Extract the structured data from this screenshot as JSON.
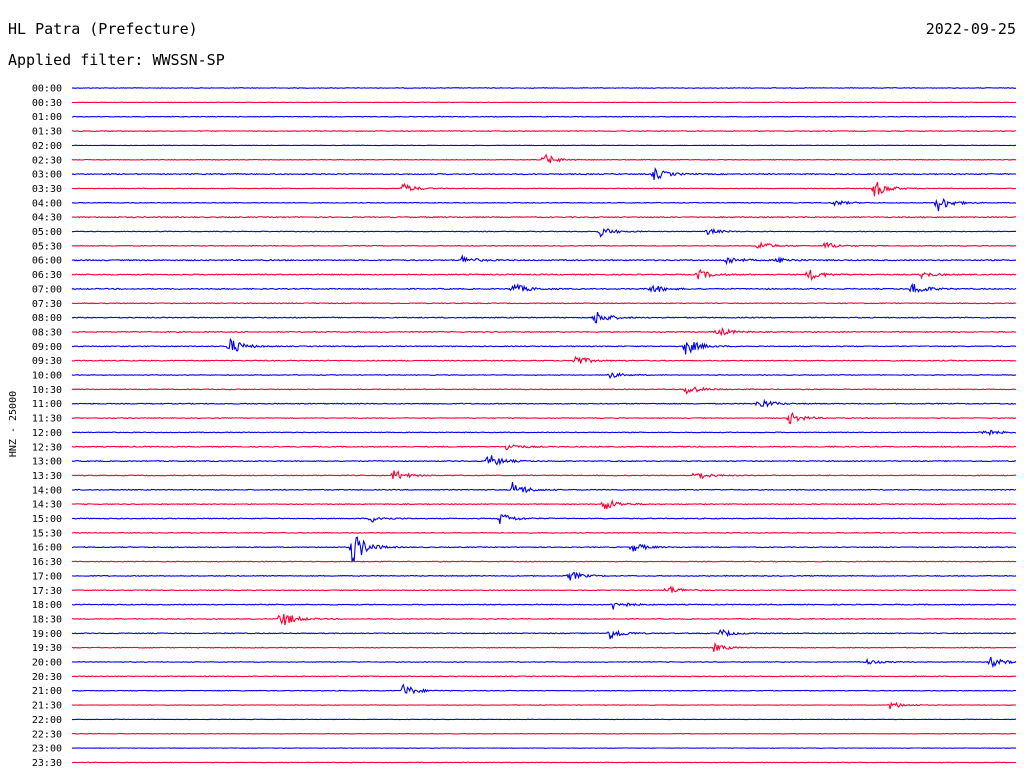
{
  "header": {
    "station": "HL Patra (Prefecture)",
    "date": "2022-09-25",
    "filter_text": "Applied filter: WWSSN-SP"
  },
  "colors": {
    "trace_a": "#0000ee",
    "trace_b": "#ff0033",
    "text": "#000000"
  },
  "chart_data": {
    "type": "line",
    "chart_kind": "helicorder",
    "ylabel": "HNZ - 25000",
    "row_interval_minutes": 30,
    "row_labels": [
      "00:00",
      "00:30",
      "01:00",
      "01:30",
      "02:00",
      "02:30",
      "03:00",
      "03:30",
      "04:00",
      "04:30",
      "05:00",
      "05:30",
      "06:00",
      "06:30",
      "07:00",
      "07:30",
      "08:00",
      "08:30",
      "09:00",
      "09:30",
      "10:00",
      "10:30",
      "11:00",
      "11:30",
      "12:00",
      "12:30",
      "13:00",
      "13:30",
      "14:00",
      "14:30",
      "15:00",
      "15:30",
      "16:00",
      "16:30",
      "17:00",
      "17:30",
      "18:00",
      "18:30",
      "19:00",
      "19:30",
      "20:00",
      "20:30",
      "21:00",
      "21:30",
      "22:00",
      "22:30",
      "23:00",
      "23:30"
    ],
    "trace_colors_cycle": [
      "#0000ee",
      "#ff0033"
    ],
    "noise_level": [
      0.35,
      0.2,
      0.3,
      0.35,
      0.2,
      0.3,
      0.5,
      0.3,
      0.35,
      0.5,
      0.35,
      0.35,
      0.55,
      0.5,
      0.5,
      0.4,
      0.45,
      0.45,
      0.4,
      0.45,
      0.35,
      0.35,
      0.45,
      0.35,
      0.35,
      0.45,
      0.45,
      0.4,
      0.45,
      0.4,
      0.4,
      0.35,
      0.4,
      0.35,
      0.4,
      0.35,
      0.4,
      0.4,
      0.4,
      0.35,
      0.35,
      0.35,
      0.3,
      0.25,
      0.2,
      0.2,
      0.2,
      0.25
    ],
    "events": [
      {
        "row": 5,
        "minute": 15.0,
        "amp": 6
      },
      {
        "row": 6,
        "minute": 18.5,
        "amp": 6
      },
      {
        "row": 7,
        "minute": 10.5,
        "amp": 5
      },
      {
        "row": 7,
        "minute": 25.5,
        "amp": 9
      },
      {
        "row": 8,
        "minute": 27.5,
        "amp": 9
      },
      {
        "row": 8,
        "minute": 24.2,
        "amp": 3
      },
      {
        "row": 10,
        "minute": 16.8,
        "amp": 5
      },
      {
        "row": 10,
        "minute": 20.2,
        "amp": 3
      },
      {
        "row": 11,
        "minute": 21.8,
        "amp": 5
      },
      {
        "row": 11,
        "minute": 23.9,
        "amp": 4
      },
      {
        "row": 12,
        "minute": 12.4,
        "amp": 4
      },
      {
        "row": 12,
        "minute": 20.8,
        "amp": 4
      },
      {
        "row": 12,
        "minute": 22.4,
        "amp": 3
      },
      {
        "row": 13,
        "minute": 19.9,
        "amp": 5
      },
      {
        "row": 13,
        "minute": 23.4,
        "amp": 6
      },
      {
        "row": 13,
        "minute": 27.0,
        "amp": 3
      },
      {
        "row": 14,
        "minute": 14.0,
        "amp": 6
      },
      {
        "row": 14,
        "minute": 18.4,
        "amp": 5
      },
      {
        "row": 14,
        "minute": 26.7,
        "amp": 7
      },
      {
        "row": 16,
        "minute": 16.6,
        "amp": 8
      },
      {
        "row": 17,
        "minute": 20.5,
        "amp": 5
      },
      {
        "row": 18,
        "minute": 5.0,
        "amp": 9
      },
      {
        "row": 18,
        "minute": 19.5,
        "amp": 9
      },
      {
        "row": 19,
        "minute": 16.0,
        "amp": 5
      },
      {
        "row": 20,
        "minute": 17.0,
        "amp": 4
      },
      {
        "row": 21,
        "minute": 19.5,
        "amp": 6
      },
      {
        "row": 22,
        "minute": 21.8,
        "amp": 6
      },
      {
        "row": 23,
        "minute": 22.8,
        "amp": 6
      },
      {
        "row": 24,
        "minute": 28.9,
        "amp": 5
      },
      {
        "row": 25,
        "minute": 13.8,
        "amp": 4
      },
      {
        "row": 26,
        "minute": 13.2,
        "amp": 8
      },
      {
        "row": 27,
        "minute": 10.2,
        "amp": 6
      },
      {
        "row": 27,
        "minute": 19.8,
        "amp": 5
      },
      {
        "row": 28,
        "minute": 14.0,
        "amp": 8
      },
      {
        "row": 29,
        "minute": 16.9,
        "amp": 7
      },
      {
        "row": 30,
        "minute": 13.6,
        "amp": 6
      },
      {
        "row": 30,
        "minute": 9.5,
        "amp": 4
      },
      {
        "row": 32,
        "minute": 8.9,
        "amp": 18
      },
      {
        "row": 32,
        "minute": 17.8,
        "amp": 5
      },
      {
        "row": 34,
        "minute": 15.8,
        "amp": 5
      },
      {
        "row": 35,
        "minute": 18.9,
        "amp": 5
      },
      {
        "row": 36,
        "minute": 17.2,
        "amp": 5
      },
      {
        "row": 37,
        "minute": 6.6,
        "amp": 10
      },
      {
        "row": 38,
        "minute": 17.1,
        "amp": 6
      },
      {
        "row": 38,
        "minute": 20.6,
        "amp": 4
      },
      {
        "row": 39,
        "minute": 20.4,
        "amp": 4
      },
      {
        "row": 40,
        "minute": 29.2,
        "amp": 5
      },
      {
        "row": 40,
        "minute": 25.2,
        "amp": 3
      },
      {
        "row": 42,
        "minute": 10.5,
        "amp": 7
      },
      {
        "row": 43,
        "minute": 26.0,
        "amp": 4
      }
    ]
  }
}
